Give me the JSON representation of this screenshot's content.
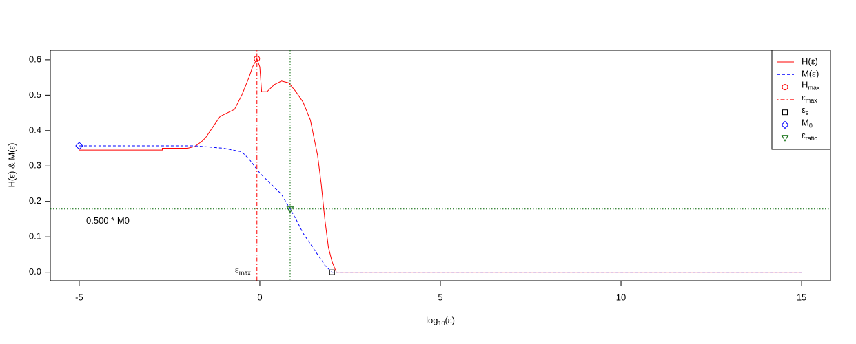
{
  "chart_data": {
    "type": "line",
    "xlabel": {
      "base": "log",
      "sub": "10",
      "rest": "(ε)"
    },
    "ylabel": "H(ε)  &  M(ε)",
    "xlim": [
      -5.8,
      15.8
    ],
    "ylim": [
      -0.024,
      0.627
    ],
    "xticks": [
      -5,
      0,
      5,
      10,
      15
    ],
    "yticks": [
      {
        "value": 0,
        "label": "0.0"
      },
      0.1,
      0.2,
      0.3,
      0.4,
      0.5,
      0.6
    ],
    "series": [
      {
        "name": "H(ε)",
        "color": "#ff0000",
        "dash": "solid",
        "x": [
          -5,
          -2.7,
          -2.7,
          -2.0,
          -1.8,
          -1.6,
          -1.5,
          -1.3,
          -1.1,
          -0.9,
          -0.7,
          -0.5,
          -0.3,
          -0.2,
          -0.08,
          0.0,
          0.05,
          0.2,
          0.4,
          0.6,
          0.8,
          1.0,
          1.2,
          1.4,
          1.6,
          1.7,
          1.8,
          1.9,
          2.0,
          2.12,
          15
        ],
        "values": [
          0.345,
          0.345,
          0.35,
          0.35,
          0.355,
          0.37,
          0.38,
          0.41,
          0.44,
          0.45,
          0.46,
          0.5,
          0.55,
          0.58,
          0.603,
          0.58,
          0.51,
          0.51,
          0.53,
          0.54,
          0.535,
          0.51,
          0.48,
          0.43,
          0.33,
          0.25,
          0.15,
          0.07,
          0.03,
          0,
          0
        ]
      },
      {
        "name": "M(ε)",
        "color": "#0000ff",
        "dash": "dashed",
        "x": [
          -5,
          -1.8,
          -1.0,
          -0.5,
          -0.3,
          0,
          0.3,
          0.6,
          0.84,
          1.0,
          1.2,
          1.4,
          1.6,
          1.8,
          2.0,
          15
        ],
        "values": [
          0.357,
          0.357,
          0.35,
          0.34,
          0.32,
          0.28,
          0.25,
          0.22,
          0.1785,
          0.15,
          0.11,
          0.08,
          0.05,
          0.02,
          0,
          0
        ]
      }
    ],
    "points": [
      {
        "label": {
          "base": "H",
          "sub": "max"
        },
        "shape": "circle",
        "color": "#ff0000",
        "x": -0.08,
        "y": 0.603
      },
      {
        "label": {
          "base": "ε",
          "sub": "s"
        },
        "shape": "square",
        "color": "#000000",
        "x": 2.0,
        "y": 0
      },
      {
        "label": {
          "base": "M",
          "sub": "0"
        },
        "shape": "diamond",
        "color": "#0000ff",
        "x": -5,
        "y": 0.357
      },
      {
        "label": {
          "base": "ε",
          "sub": "ratio"
        },
        "shape": "triangle",
        "color": "#006400",
        "x": 0.84,
        "y": 0.1785
      }
    ],
    "vlines": [
      {
        "x": -0.08,
        "color": "#ff0000",
        "dash": "dotdash",
        "label": {
          "base": "ε",
          "sub": "max"
        }
      },
      {
        "x": 0.84,
        "color": "#006400",
        "dash": "dotted"
      }
    ],
    "hline": {
      "y": 0.1785,
      "color": "#006400",
      "dash": "dotted",
      "label": "0.500 * M0"
    }
  }
}
